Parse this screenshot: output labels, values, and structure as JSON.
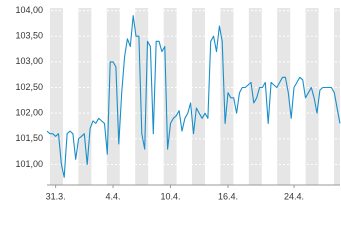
{
  "chart_data": {
    "type": "line",
    "color": "#1a8fc9",
    "values": [
      101.65,
      101.6,
      101.6,
      101.55,
      101.6,
      101.0,
      100.75,
      101.6,
      101.65,
      101.6,
      101.1,
      101.5,
      101.55,
      101.6,
      101.0,
      101.7,
      101.85,
      101.8,
      101.9,
      101.85,
      101.8,
      101.2,
      103.0,
      103.0,
      102.9,
      101.4,
      102.4,
      103.1,
      103.45,
      103.3,
      103.9,
      103.5,
      103.5,
      101.6,
      101.3,
      103.4,
      103.3,
      101.6,
      103.4,
      103.4,
      103.2,
      103.3,
      101.3,
      101.8,
      101.9,
      101.95,
      102.05,
      101.65,
      101.9,
      102.0,
      102.2,
      101.6,
      102.1,
      102.0,
      101.9,
      102.0,
      101.9,
      103.4,
      103.5,
      103.2,
      103.7,
      103.4,
      101.8,
      102.4,
      102.3,
      102.3,
      102.0,
      102.4,
      102.5,
      102.5,
      102.55,
      102.6,
      102.2,
      102.3,
      102.5,
      102.5,
      102.6,
      101.8,
      102.6,
      102.55,
      102.5,
      102.6,
      102.7,
      102.7,
      102.4,
      101.9,
      102.5,
      102.6,
      102.7,
      102.65,
      102.3,
      102.4,
      102.5,
      102.3,
      102.0,
      102.45,
      102.5,
      102.5,
      102.5,
      102.5,
      102.4,
      102.1,
      101.8
    ],
    "xlim": [
      0,
      102
    ],
    "xticks": [
      {
        "value": 3,
        "label": "31.3."
      },
      {
        "value": 23,
        "label": "4.4."
      },
      {
        "value": 43,
        "label": "10.4."
      },
      {
        "value": 63,
        "label": "16.4."
      },
      {
        "value": 86,
        "label": "24.4."
      }
    ],
    "ylim": [
      100.6,
      104.05
    ],
    "yticks": [
      {
        "value": 101,
        "label": "101,00"
      },
      {
        "value": 101.5,
        "label": "101,50"
      },
      {
        "value": 102,
        "label": "102,00"
      },
      {
        "value": 102.5,
        "label": "102,50"
      },
      {
        "value": 103,
        "label": "103,00"
      },
      {
        "value": 103.5,
        "label": "103,50"
      },
      {
        "value": 104,
        "label": "104,00"
      }
    ],
    "grid": true
  }
}
